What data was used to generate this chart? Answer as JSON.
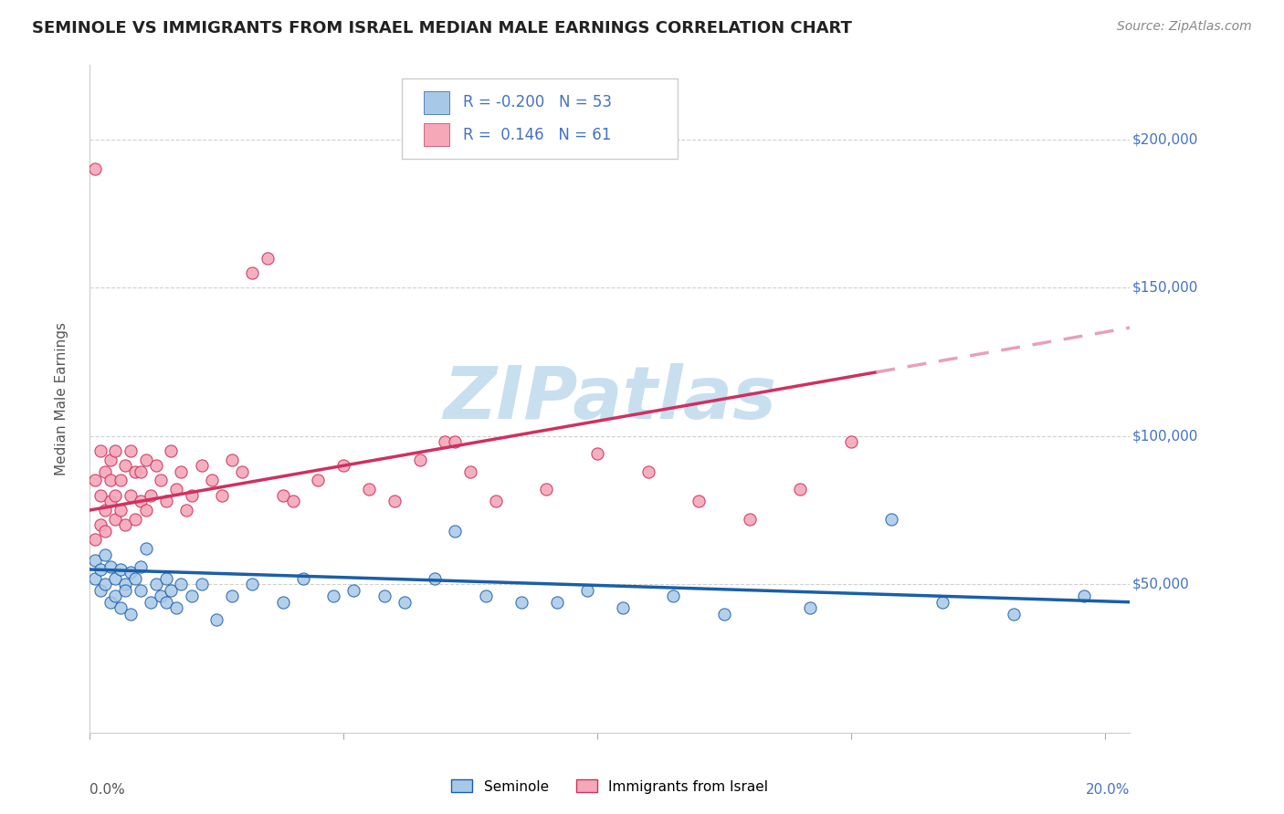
{
  "title": "SEMINOLE VS IMMIGRANTS FROM ISRAEL MEDIAN MALE EARNINGS CORRELATION CHART",
  "source": "Source: ZipAtlas.com",
  "ylabel": "Median Male Earnings",
  "legend_label1": "Seminole",
  "legend_label2": "Immigrants from Israel",
  "r1": -0.2,
  "n1": 53,
  "r2": 0.146,
  "n2": 61,
  "color_blue": "#a8c8e8",
  "color_pink": "#f4a8b8",
  "color_blue_line": "#1a5fa8",
  "color_pink_line": "#d03060",
  "color_pink_dashed": "#e8a0b8",
  "background": "#ffffff",
  "grid_color": "#d0d0d0",
  "watermark": "ZIPatlas",
  "watermark_color": "#c8dff0",
  "ymin": 0,
  "ymax": 225000,
  "xmin": 0.0,
  "xmax": 0.205,
  "seminole_x": [
    0.001,
    0.001,
    0.002,
    0.002,
    0.003,
    0.003,
    0.004,
    0.004,
    0.005,
    0.005,
    0.006,
    0.006,
    0.007,
    0.007,
    0.008,
    0.008,
    0.009,
    0.01,
    0.01,
    0.011,
    0.012,
    0.013,
    0.014,
    0.015,
    0.015,
    0.016,
    0.017,
    0.018,
    0.02,
    0.022,
    0.025,
    0.028,
    0.032,
    0.038,
    0.042,
    0.048,
    0.052,
    0.058,
    0.062,
    0.068,
    0.072,
    0.078,
    0.085,
    0.092,
    0.098,
    0.105,
    0.115,
    0.125,
    0.142,
    0.158,
    0.168,
    0.182,
    0.196
  ],
  "seminole_y": [
    58000,
    52000,
    55000,
    48000,
    60000,
    50000,
    56000,
    44000,
    52000,
    46000,
    55000,
    42000,
    50000,
    48000,
    54000,
    40000,
    52000,
    48000,
    56000,
    62000,
    44000,
    50000,
    46000,
    52000,
    44000,
    48000,
    42000,
    50000,
    46000,
    50000,
    38000,
    46000,
    50000,
    44000,
    52000,
    46000,
    48000,
    46000,
    44000,
    52000,
    68000,
    46000,
    44000,
    44000,
    48000,
    42000,
    46000,
    40000,
    42000,
    72000,
    44000,
    40000,
    46000
  ],
  "israel_x": [
    0.001,
    0.001,
    0.001,
    0.002,
    0.002,
    0.002,
    0.003,
    0.003,
    0.003,
    0.004,
    0.004,
    0.004,
    0.005,
    0.005,
    0.005,
    0.006,
    0.006,
    0.007,
    0.007,
    0.008,
    0.008,
    0.009,
    0.009,
    0.01,
    0.01,
    0.011,
    0.011,
    0.012,
    0.013,
    0.014,
    0.015,
    0.016,
    0.017,
    0.018,
    0.019,
    0.02,
    0.022,
    0.024,
    0.026,
    0.028,
    0.03,
    0.032,
    0.035,
    0.038,
    0.04,
    0.045,
    0.05,
    0.055,
    0.06,
    0.065,
    0.07,
    0.075,
    0.08,
    0.09,
    0.1,
    0.11,
    0.12,
    0.13,
    0.14,
    0.15,
    0.072
  ],
  "israel_y": [
    190000,
    85000,
    65000,
    95000,
    80000,
    70000,
    88000,
    75000,
    68000,
    92000,
    78000,
    85000,
    72000,
    95000,
    80000,
    85000,
    75000,
    90000,
    70000,
    95000,
    80000,
    88000,
    72000,
    78000,
    88000,
    92000,
    75000,
    80000,
    90000,
    85000,
    78000,
    95000,
    82000,
    88000,
    75000,
    80000,
    90000,
    85000,
    80000,
    92000,
    88000,
    155000,
    160000,
    80000,
    78000,
    85000,
    90000,
    82000,
    78000,
    92000,
    98000,
    88000,
    78000,
    82000,
    94000,
    88000,
    78000,
    72000,
    82000,
    98000,
    98000
  ]
}
